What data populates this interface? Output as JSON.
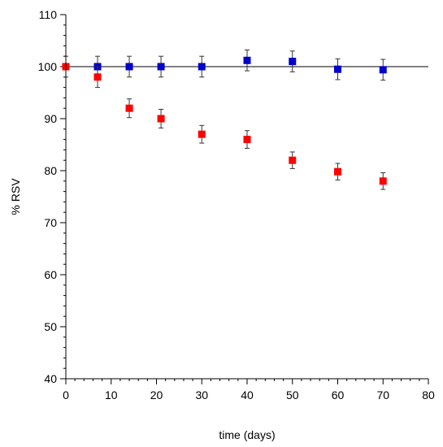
{
  "chart_data": {
    "type": "scatter",
    "title": "",
    "xlabel": "time (days)",
    "ylabel": "% RSV",
    "xlim": [
      0,
      80
    ],
    "ylim": [
      40,
      110
    ],
    "xticks": [
      0,
      10,
      20,
      30,
      40,
      50,
      60,
      70,
      80
    ],
    "yticks": [
      40,
      50,
      60,
      70,
      80,
      90,
      100,
      110
    ],
    "x_minor_step": 2,
    "y_minor_step": 2,
    "grid": false,
    "reference_line": 100,
    "series": [
      {
        "color": "#0000cc",
        "marker": "square",
        "points": [
          {
            "x": 0,
            "y": 100,
            "err": 0
          },
          {
            "x": 7,
            "y": 100,
            "err": 2
          },
          {
            "x": 14,
            "y": 100,
            "err": 2
          },
          {
            "x": 21,
            "y": 100,
            "err": 2
          },
          {
            "x": 30,
            "y": 100,
            "err": 2
          },
          {
            "x": 40,
            "y": 101.2,
            "err": 2
          },
          {
            "x": 50,
            "y": 101,
            "err": 2
          },
          {
            "x": 60,
            "y": 99.5,
            "err": 2
          },
          {
            "x": 70,
            "y": 99.4,
            "err": 2
          }
        ]
      },
      {
        "color": "#ff0000",
        "marker": "square",
        "points": [
          {
            "x": 0,
            "y": 100,
            "err": 2
          },
          {
            "x": 7,
            "y": 98,
            "err": 2
          },
          {
            "x": 14,
            "y": 92,
            "err": 1.8
          },
          {
            "x": 21,
            "y": 90,
            "err": 1.8
          },
          {
            "x": 30,
            "y": 87,
            "err": 1.7
          },
          {
            "x": 40,
            "y": 86,
            "err": 1.7
          },
          {
            "x": 50,
            "y": 82,
            "err": 1.6
          },
          {
            "x": 60,
            "y": 79.8,
            "err": 1.6
          },
          {
            "x": 70,
            "y": 78,
            "err": 1.6
          }
        ]
      }
    ]
  }
}
